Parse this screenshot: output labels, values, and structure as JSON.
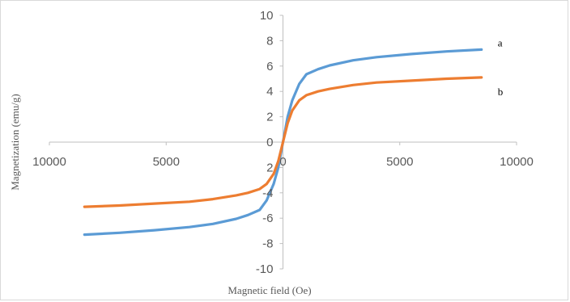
{
  "chart_data": {
    "type": "line",
    "xlabel": "Magnetic field (Oe)",
    "ylabel": "Magnetization (emu/g)",
    "xlim": [
      -10000,
      10000
    ],
    "ylim": [
      -10,
      10
    ],
    "x_tick_labels": [
      "10000",
      "5000",
      "0",
      "5000",
      "10000"
    ],
    "y_tick_labels": [
      "10",
      "8",
      "6",
      "4",
      "2",
      "0",
      "2",
      "-4",
      "-6",
      "-8",
      "-10"
    ],
    "grid": false,
    "series": [
      {
        "name": "a",
        "color": "#5b9bd5",
        "x": [
          -8500,
          -7000,
          -5500,
          -4000,
          -3000,
          -2000,
          -1500,
          -1000,
          -700,
          -400,
          -200,
          0,
          200,
          400,
          700,
          1000,
          1500,
          2000,
          3000,
          4000,
          5500,
          7000,
          8500
        ],
        "y": [
          -7.3,
          -7.15,
          -6.95,
          -6.7,
          -6.45,
          -6.05,
          -5.75,
          -5.35,
          -4.6,
          -3.3,
          -2.0,
          0,
          2.0,
          3.3,
          4.6,
          5.35,
          5.75,
          6.05,
          6.45,
          6.7,
          6.95,
          7.15,
          7.3
        ]
      },
      {
        "name": "b",
        "color": "#ed7d31",
        "x": [
          -8500,
          -7000,
          -5500,
          -4000,
          -3000,
          -2000,
          -1500,
          -1000,
          -700,
          -400,
          -200,
          0,
          200,
          400,
          700,
          1000,
          1500,
          2000,
          3000,
          4000,
          5500,
          7000,
          8500
        ],
        "y": [
          -5.1,
          -5.0,
          -4.85,
          -4.7,
          -4.5,
          -4.2,
          -4.0,
          -3.7,
          -3.3,
          -2.5,
          -1.5,
          0,
          1.5,
          2.5,
          3.3,
          3.7,
          4.0,
          4.2,
          4.5,
          4.7,
          4.85,
          5.0,
          5.1
        ]
      }
    ]
  }
}
